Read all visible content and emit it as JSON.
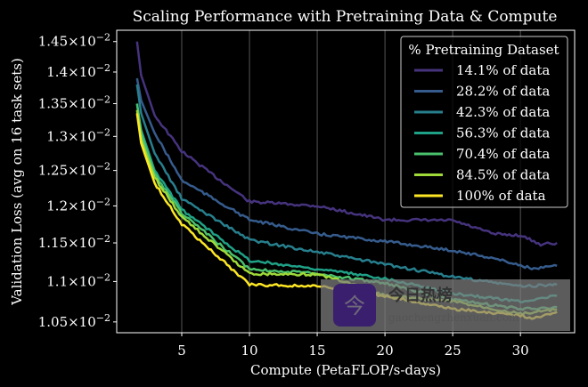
{
  "chart_data": {
    "type": "line",
    "title": "Scaling Performance with Pretraining Data & Compute",
    "xlabel": "Compute (PetaFLOP/s-days)",
    "ylabel": "Validation Loss (avg on 16 task sets)",
    "xscale": "linear",
    "yscale": "log",
    "xlim": [
      0.2,
      34
    ],
    "ylim": [
      0.01037,
      0.01469
    ],
    "grid": "vertical lines at x ticks",
    "x_ticks": [
      5,
      10,
      15,
      20,
      25,
      30
    ],
    "x_tick_labels": [
      "5",
      "10",
      "15",
      "20",
      "25",
      "30"
    ],
    "y_ticks": [
      0.0105,
      0.011,
      0.0115,
      0.012,
      0.0125,
      0.013,
      0.0135,
      0.014,
      0.0145
    ],
    "y_tick_mantissas": [
      "1.05",
      "1.1",
      "1.15",
      "1.2",
      "1.25",
      "1.3",
      "1.35",
      "1.4",
      "1.45"
    ],
    "y_tick_suffix": "×10",
    "y_tick_exponent": "−2",
    "legend": {
      "title": "% Pretraining Dataset",
      "position": "upper right"
    },
    "series": [
      {
        "name": "14.1% of data",
        "color": "#46337e",
        "x": [
          1.7,
          2,
          3,
          5,
          7,
          10,
          15,
          20,
          25,
          28,
          30,
          31.5,
          32.7
        ],
        "y": [
          0.0145,
          0.01395,
          0.01332,
          0.01278,
          0.01248,
          0.01206,
          0.012,
          0.01181,
          0.0118,
          0.01162,
          0.0116,
          0.01148,
          0.0115
        ]
      },
      {
        "name": "28.2% of data",
        "color": "#365c8d",
        "x": [
          1.7,
          2,
          3,
          5,
          10,
          15,
          20,
          25,
          28,
          31,
          32.7
        ],
        "y": [
          0.0139,
          0.01355,
          0.01305,
          0.01236,
          0.01181,
          0.01162,
          0.01152,
          0.0114,
          0.0113,
          0.01116,
          0.0112
        ]
      },
      {
        "name": "42.3% of data",
        "color": "#277f8e",
        "x": [
          1.7,
          2,
          3,
          5,
          10,
          15,
          20,
          25,
          30,
          32.7
        ],
        "y": [
          0.0138,
          0.01335,
          0.01275,
          0.0121,
          0.01154,
          0.01138,
          0.01122,
          0.01106,
          0.01094,
          0.01096
        ]
      },
      {
        "name": "56.3% of data",
        "color": "#1fa187",
        "x": [
          1.7,
          2,
          3,
          5,
          10,
          15,
          20,
          25,
          30,
          32.7
        ],
        "y": [
          0.0135,
          0.0131,
          0.0125,
          0.01195,
          0.01127,
          0.01116,
          0.01104,
          0.01085,
          0.01075,
          0.01082
        ]
      },
      {
        "name": "70.4% of data",
        "color": "#4ac16d",
        "x": [
          1.7,
          2,
          3,
          5,
          10,
          15,
          20,
          25,
          30,
          32.7
        ],
        "y": [
          0.0135,
          0.01305,
          0.01245,
          0.0119,
          0.01116,
          0.0111,
          0.01098,
          0.01077,
          0.01066,
          0.01068
        ]
      },
      {
        "name": "84.5% of data",
        "color": "#a0da39",
        "x": [
          1.7,
          2,
          3,
          5,
          10,
          15,
          17,
          20,
          25,
          30,
          32.7
        ],
        "y": [
          0.0134,
          0.01295,
          0.0124,
          0.01185,
          0.0111,
          0.01109,
          0.011,
          0.01082,
          0.01075,
          0.0106,
          0.01065
        ]
      },
      {
        "name": "100% of data",
        "color": "#fde725",
        "x": [
          1.7,
          2,
          3,
          5,
          10,
          15,
          20,
          25,
          30,
          31,
          32.7
        ],
        "y": [
          0.01335,
          0.0129,
          0.01232,
          0.01175,
          0.01096,
          0.01094,
          0.01082,
          0.01066,
          0.01058,
          0.01054,
          0.01062
        ]
      }
    ]
  },
  "watermark": {
    "title": "今日热榜",
    "url": "gaochengzhenxuan.com"
  }
}
